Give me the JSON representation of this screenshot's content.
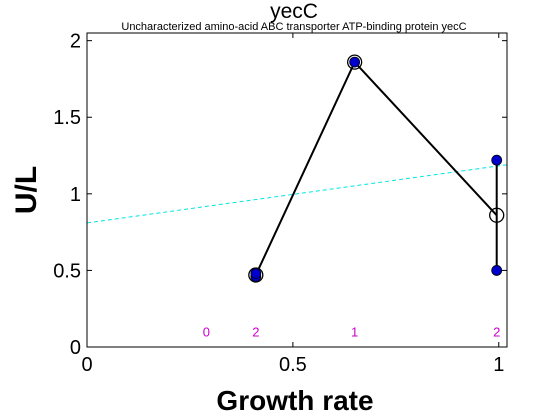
{
  "chart_data": {
    "type": "scatter",
    "title": "yecC",
    "subtitle": "Uncharacterized amino-acid ABC transporter ATP-binding protein yecC",
    "xlabel": "Growth rate",
    "ylabel": "U/L",
    "xlim": [
      0,
      1.02
    ],
    "ylim": [
      0,
      2.05
    ],
    "xticks": [
      {
        "value": 0,
        "label": "0"
      },
      {
        "value": 0.5,
        "label": "0.5"
      },
      {
        "value": 1,
        "label": "1"
      }
    ],
    "yticks": [
      {
        "value": 0,
        "label": "0"
      },
      {
        "value": 0.5,
        "label": "0.5"
      },
      {
        "value": 1,
        "label": "1"
      },
      {
        "value": 1.5,
        "label": "1.5"
      },
      {
        "value": 2,
        "label": "2"
      }
    ],
    "grid": false,
    "mean_line": {
      "color": "#000000",
      "points": [
        {
          "x": 0.41,
          "y": 0.47
        },
        {
          "x": 0.65,
          "y": 1.86
        },
        {
          "x": 0.995,
          "y": 0.86
        }
      ]
    },
    "range_bars": [
      {
        "x": 0.41,
        "low": 0.47,
        "high": 0.47
      },
      {
        "x": 0.995,
        "low": 0.5,
        "high": 1.22
      }
    ],
    "samples": {
      "color": "#0000cc",
      "points": [
        {
          "x": 0.41,
          "y": 0.46
        },
        {
          "x": 0.41,
          "y": 0.48
        },
        {
          "x": 0.65,
          "y": 1.86
        },
        {
          "x": 0.995,
          "y": 1.22
        },
        {
          "x": 0.995,
          "y": 0.5
        }
      ]
    },
    "fit_line": {
      "color": "#00e5e5",
      "start": {
        "x": 0,
        "y": 0.81
      },
      "end": {
        "x": 1.02,
        "y": 1.19
      }
    },
    "counts": {
      "color": "#cc00cc",
      "y": 0.1,
      "items": [
        {
          "x": 0.29,
          "label": "0"
        },
        {
          "x": 0.41,
          "label": "2"
        },
        {
          "x": 0.65,
          "label": "1"
        },
        {
          "x": 0.995,
          "label": "2"
        }
      ]
    }
  }
}
